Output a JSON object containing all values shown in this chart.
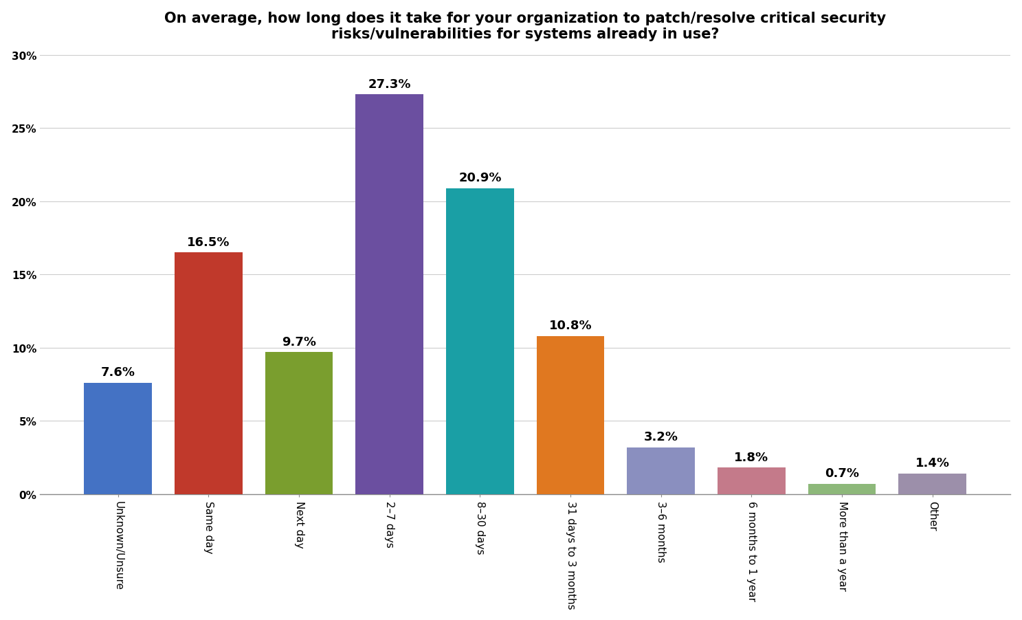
{
  "title": "On average, how long does it take for your organization to patch/resolve critical security\nrisks/vulnerabilities for systems already in use?",
  "categories": [
    "Unknown/Unsure",
    "Same day",
    "Next day",
    "2–7 days",
    "8–30 days",
    "31 days to 3 months",
    "3–6 months",
    "6 months to 1 year",
    "More than a year",
    "Other"
  ],
  "values": [
    7.6,
    16.5,
    9.7,
    27.3,
    20.9,
    10.8,
    3.2,
    1.8,
    0.7,
    1.4
  ],
  "bar_colors": [
    "#4472C4",
    "#C0392B",
    "#7A9E2E",
    "#6B4FA0",
    "#1A9FA5",
    "#E07820",
    "#8A8FBF",
    "#C47A8A",
    "#8DB87A",
    "#9C8FAA"
  ],
  "ylim": [
    0,
    30
  ],
  "yticks": [
    0,
    5,
    10,
    15,
    20,
    25,
    30
  ],
  "title_fontsize": 15,
  "tick_fontsize": 11,
  "bar_label_fontsize": 13,
  "background_color": "#FFFFFF",
  "grid_color": "#CCCCCC"
}
